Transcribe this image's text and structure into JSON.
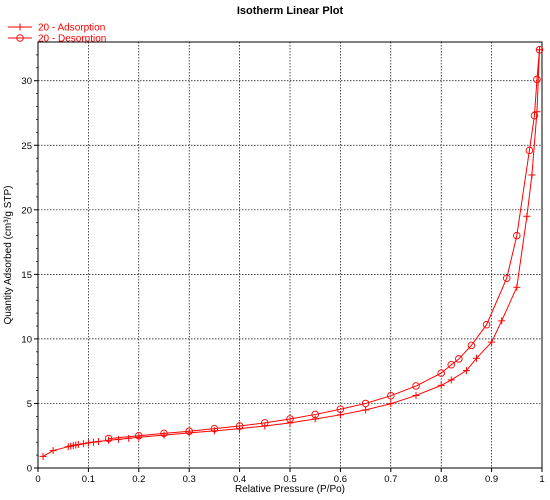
{
  "chart_data": {
    "type": "line",
    "title": "Isotherm Linear Plot",
    "xlabel": "Relative Pressure (P/Po)",
    "ylabel": "Quantity Adsorbed (cm³/g STP)",
    "xlim": [
      0,
      1.0
    ],
    "ylim": [
      0,
      33
    ],
    "x_ticks": [
      "0",
      "0.1",
      "0.2",
      "0.3",
      "0.4",
      "0.5",
      "0.6",
      "0.7",
      "0.8",
      "0.9",
      "1"
    ],
    "y_ticks": [
      "0",
      "5",
      "10",
      "15",
      "20",
      "25",
      "30"
    ],
    "grid": true,
    "legend_position": "top-left",
    "colors": {
      "series": "#ff0000",
      "grid": "#000000"
    },
    "series": [
      {
        "name": "20 - Adsorption",
        "marker": "plus",
        "points": [
          [
            0.01,
            0.9
          ],
          [
            0.03,
            1.35
          ],
          [
            0.06,
            1.65
          ],
          [
            0.065,
            1.7
          ],
          [
            0.07,
            1.75
          ],
          [
            0.075,
            1.78
          ],
          [
            0.08,
            1.82
          ],
          [
            0.09,
            1.88
          ],
          [
            0.1,
            1.95
          ],
          [
            0.11,
            2.0
          ],
          [
            0.12,
            2.05
          ],
          [
            0.14,
            2.15
          ],
          [
            0.16,
            2.22
          ],
          [
            0.18,
            2.3
          ],
          [
            0.2,
            2.38
          ],
          [
            0.25,
            2.55
          ],
          [
            0.3,
            2.72
          ],
          [
            0.35,
            2.88
          ],
          [
            0.4,
            3.05
          ],
          [
            0.45,
            3.25
          ],
          [
            0.5,
            3.5
          ],
          [
            0.55,
            3.8
          ],
          [
            0.6,
            4.12
          ],
          [
            0.65,
            4.5
          ],
          [
            0.7,
            4.98
          ],
          [
            0.75,
            5.62
          ],
          [
            0.8,
            6.4
          ],
          [
            0.82,
            6.82
          ],
          [
            0.85,
            7.55
          ],
          [
            0.87,
            8.5
          ],
          [
            0.9,
            9.75
          ],
          [
            0.92,
            11.4
          ],
          [
            0.95,
            14.0
          ],
          [
            0.97,
            19.5
          ],
          [
            0.98,
            22.7
          ],
          [
            0.99,
            27.6
          ],
          [
            0.995,
            32.4
          ]
        ]
      },
      {
        "name": "20 - Desorption",
        "marker": "circle",
        "points": [
          [
            0.995,
            32.4
          ],
          [
            0.99,
            30.1
          ],
          [
            0.985,
            27.3
          ],
          [
            0.975,
            24.6
          ],
          [
            0.95,
            18.0
          ],
          [
            0.93,
            14.7
          ],
          [
            0.89,
            11.1
          ],
          [
            0.86,
            9.5
          ],
          [
            0.835,
            8.45
          ],
          [
            0.82,
            8.0
          ],
          [
            0.8,
            7.35
          ],
          [
            0.75,
            6.35
          ],
          [
            0.7,
            5.6
          ],
          [
            0.65,
            5.0
          ],
          [
            0.6,
            4.55
          ],
          [
            0.55,
            4.15
          ],
          [
            0.5,
            3.8
          ],
          [
            0.45,
            3.5
          ],
          [
            0.4,
            3.25
          ],
          [
            0.35,
            3.05
          ],
          [
            0.3,
            2.85
          ],
          [
            0.25,
            2.68
          ],
          [
            0.2,
            2.5
          ],
          [
            0.14,
            2.28
          ]
        ]
      }
    ]
  }
}
